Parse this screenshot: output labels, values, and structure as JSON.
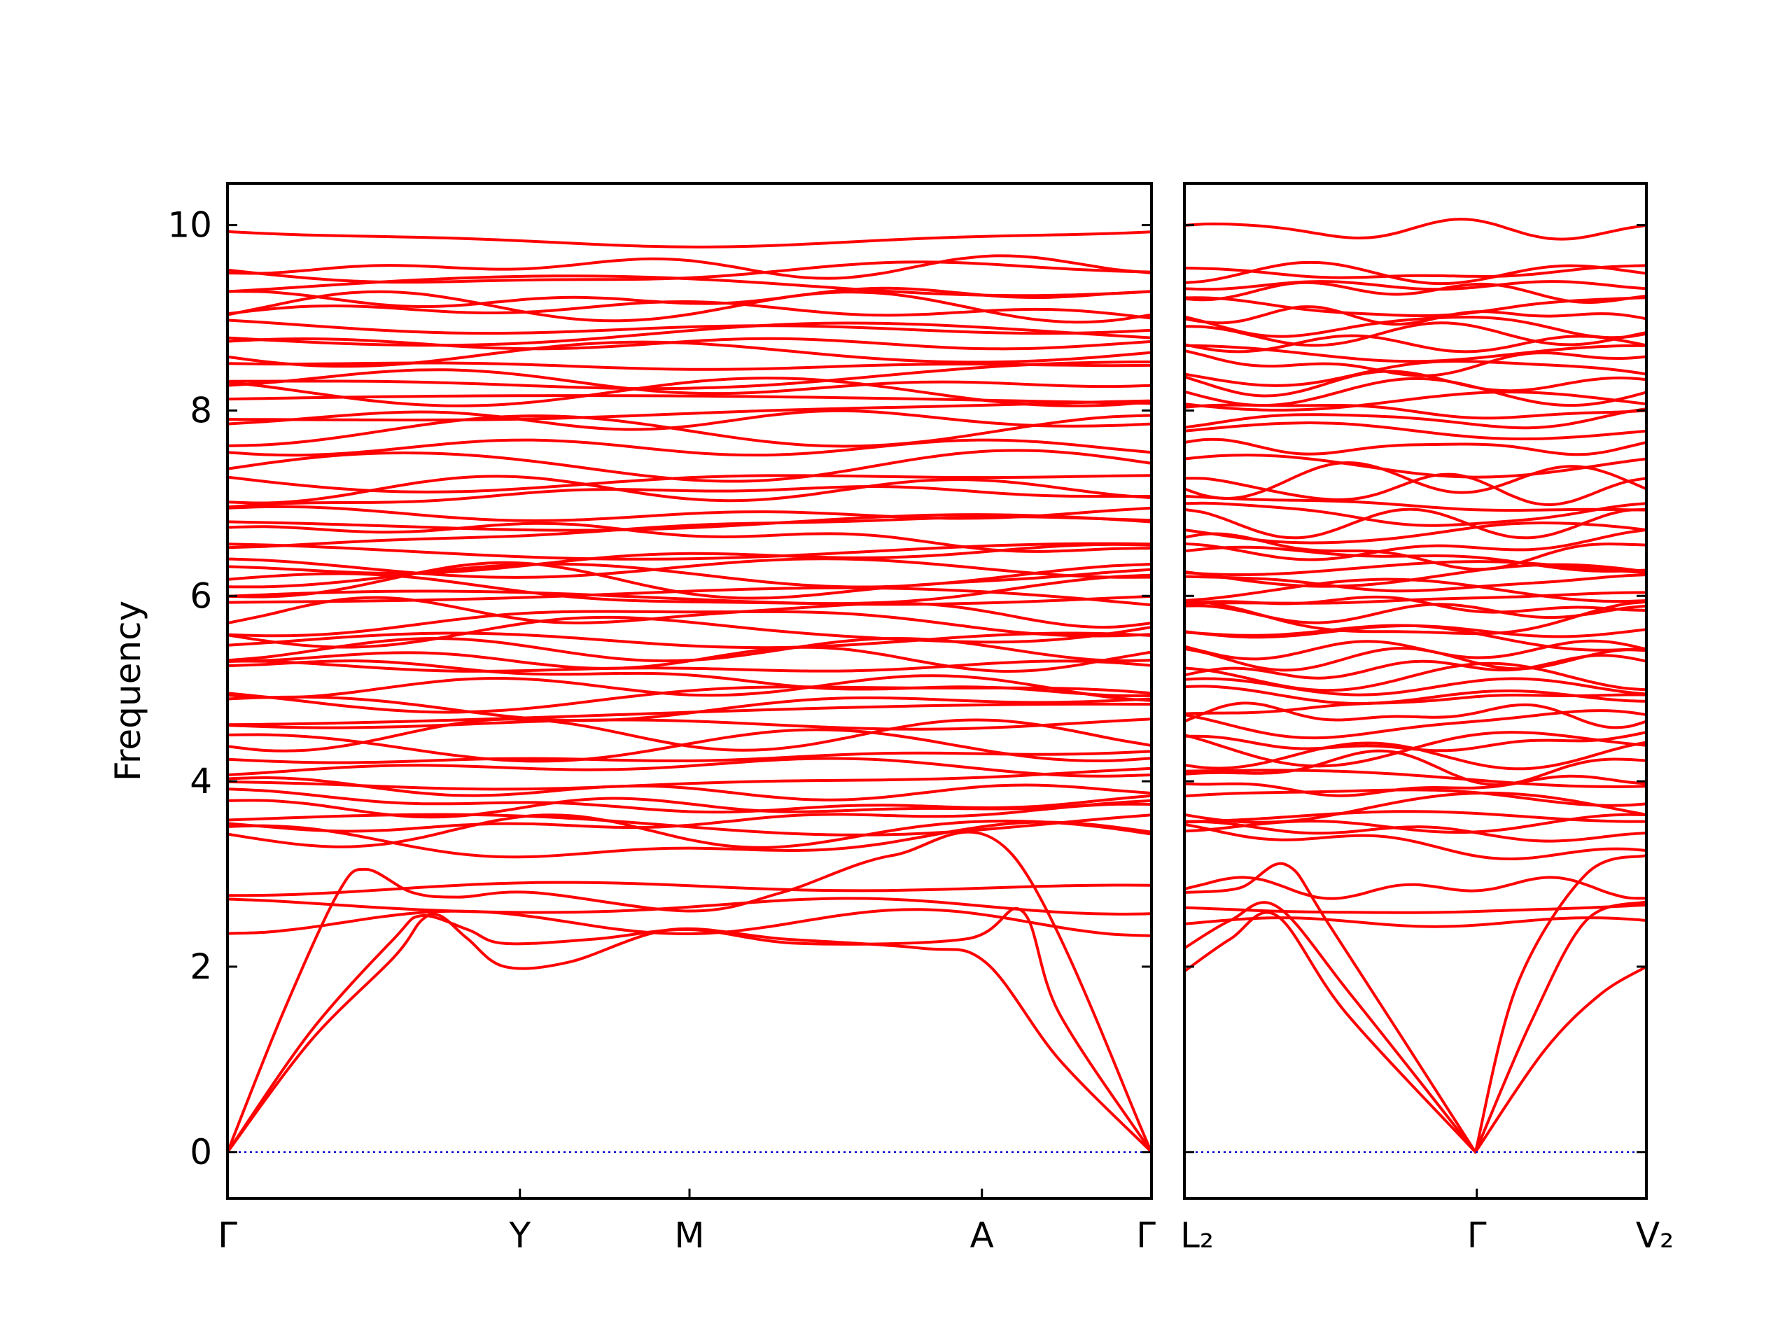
{
  "chart_data": {
    "type": "line",
    "ylabel": "Frequency",
    "ylim": [
      -0.5,
      10.45
    ],
    "yticks": [
      0,
      2,
      4,
      6,
      8,
      10
    ],
    "grid": false,
    "legend": "none",
    "colors": {
      "bands": "#ff0000",
      "zero_line": "#0000cc",
      "frame": "#000000"
    },
    "panels": [
      {
        "id": "left",
        "path_labels": [
          "Γ",
          "Y",
          "M",
          "A",
          "Γ"
        ],
        "segments": [
          {
            "from": "Γ",
            "to": "Y"
          },
          {
            "from": "Y",
            "to": "M"
          },
          {
            "from": "M",
            "to": "A"
          },
          {
            "from": "A",
            "to": "Γ"
          }
        ],
        "segment_length_ratios": [
          1.0,
          0.58,
          1.0,
          0.58
        ],
        "acoustic_branches": [
          {
            "name": "acoustic-1",
            "points": [
              [
                0,
                0
              ],
              [
                0.09,
                1.2
              ],
              [
                0.18,
                2.1
              ],
              [
                0.21,
                2.5
              ],
              [
                0.23,
                2.55
              ],
              [
                0.26,
                2.3
              ],
              [
                0.3,
                2.0
              ],
              [
                0.37,
                2.05
              ],
              [
                0.48,
                2.4
              ],
              [
                0.6,
                2.3
              ],
              [
                0.75,
                2.2
              ],
              [
                0.82,
                2.05
              ],
              [
                0.9,
                1.0
              ],
              [
                1.0,
                0
              ]
            ]
          },
          {
            "name": "acoustic-2",
            "points": [
              [
                0,
                0
              ],
              [
                0.09,
                1.3
              ],
              [
                0.18,
                2.3
              ],
              [
                0.21,
                2.55
              ],
              [
                0.26,
                2.4
              ],
              [
                0.3,
                2.25
              ],
              [
                0.4,
                2.3
              ],
              [
                0.5,
                2.4
              ],
              [
                0.62,
                2.25
              ],
              [
                0.8,
                2.3
              ],
              [
                0.86,
                2.6
              ],
              [
                0.9,
                1.5
              ],
              [
                1.0,
                0
              ]
            ]
          },
          {
            "name": "acoustic-3",
            "points": [
              [
                0,
                0
              ],
              [
                0.06,
                1.5
              ],
              [
                0.12,
                2.8
              ],
              [
                0.15,
                3.05
              ],
              [
                0.2,
                2.8
              ],
              [
                0.25,
                2.75
              ],
              [
                0.33,
                2.8
              ],
              [
                0.5,
                2.6
              ],
              [
                0.6,
                2.8
              ],
              [
                0.72,
                3.2
              ],
              [
                0.85,
                3.2
              ],
              [
                1.0,
                0
              ]
            ]
          }
        ],
        "zero_line_value": 0
      },
      {
        "id": "right",
        "path_labels": [
          "L₂",
          "Γ",
          "V₂"
        ],
        "segments": [
          {
            "from": "L₂",
            "to": "Γ"
          },
          {
            "from": "Γ",
            "to": "V₂"
          }
        ],
        "segment_length_ratios": [
          1.0,
          0.58
        ],
        "acoustic_branches": [
          {
            "name": "acoustic-1",
            "points": [
              [
                0,
                1.95
              ],
              [
                0.1,
                2.3
              ],
              [
                0.2,
                2.55
              ],
              [
                0.35,
                1.5
              ],
              [
                0.63,
                0
              ],
              [
                0.78,
                1.1
              ],
              [
                0.9,
                1.7
              ],
              [
                1.0,
                2.0
              ]
            ]
          },
          {
            "name": "acoustic-2",
            "points": [
              [
                0,
                2.2
              ],
              [
                0.1,
                2.5
              ],
              [
                0.2,
                2.65
              ],
              [
                0.36,
                1.7
              ],
              [
                0.63,
                0
              ],
              [
                0.75,
                1.4
              ],
              [
                0.87,
                2.5
              ],
              [
                1.0,
                2.7
              ]
            ]
          },
          {
            "name": "acoustic-3",
            "points": [
              [
                0,
                2.8
              ],
              [
                0.12,
                2.85
              ],
              [
                0.22,
                3.1
              ],
              [
                0.32,
                2.4
              ],
              [
                0.63,
                0
              ],
              [
                0.72,
                1.8
              ],
              [
                0.87,
                3.0
              ],
              [
                1.0,
                3.2
              ]
            ]
          }
        ],
        "zero_line_value": 0
      }
    ],
    "optical_band_levels": [
      2.48,
      2.65,
      2.85,
      3.35,
      3.45,
      3.55,
      3.62,
      3.72,
      3.85,
      3.95,
      4.05,
      4.15,
      4.28,
      4.38,
      4.5,
      4.62,
      4.72,
      4.82,
      4.92,
      5.02,
      5.12,
      5.22,
      5.32,
      5.42,
      5.52,
      5.62,
      5.72,
      5.82,
      5.9,
      5.98,
      6.06,
      6.14,
      6.22,
      6.3,
      6.38,
      6.48,
      6.58,
      6.68,
      6.78,
      6.88,
      7.0,
      7.15,
      7.25,
      7.4,
      7.6,
      7.78,
      7.9,
      8.0,
      8.1,
      8.2,
      8.3,
      8.42,
      8.52,
      8.62,
      8.72,
      8.82,
      8.92,
      9.02,
      9.12,
      9.22,
      9.35,
      9.48,
      9.55,
      9.95
    ],
    "band_wobble_amplitude": 0.12
  }
}
